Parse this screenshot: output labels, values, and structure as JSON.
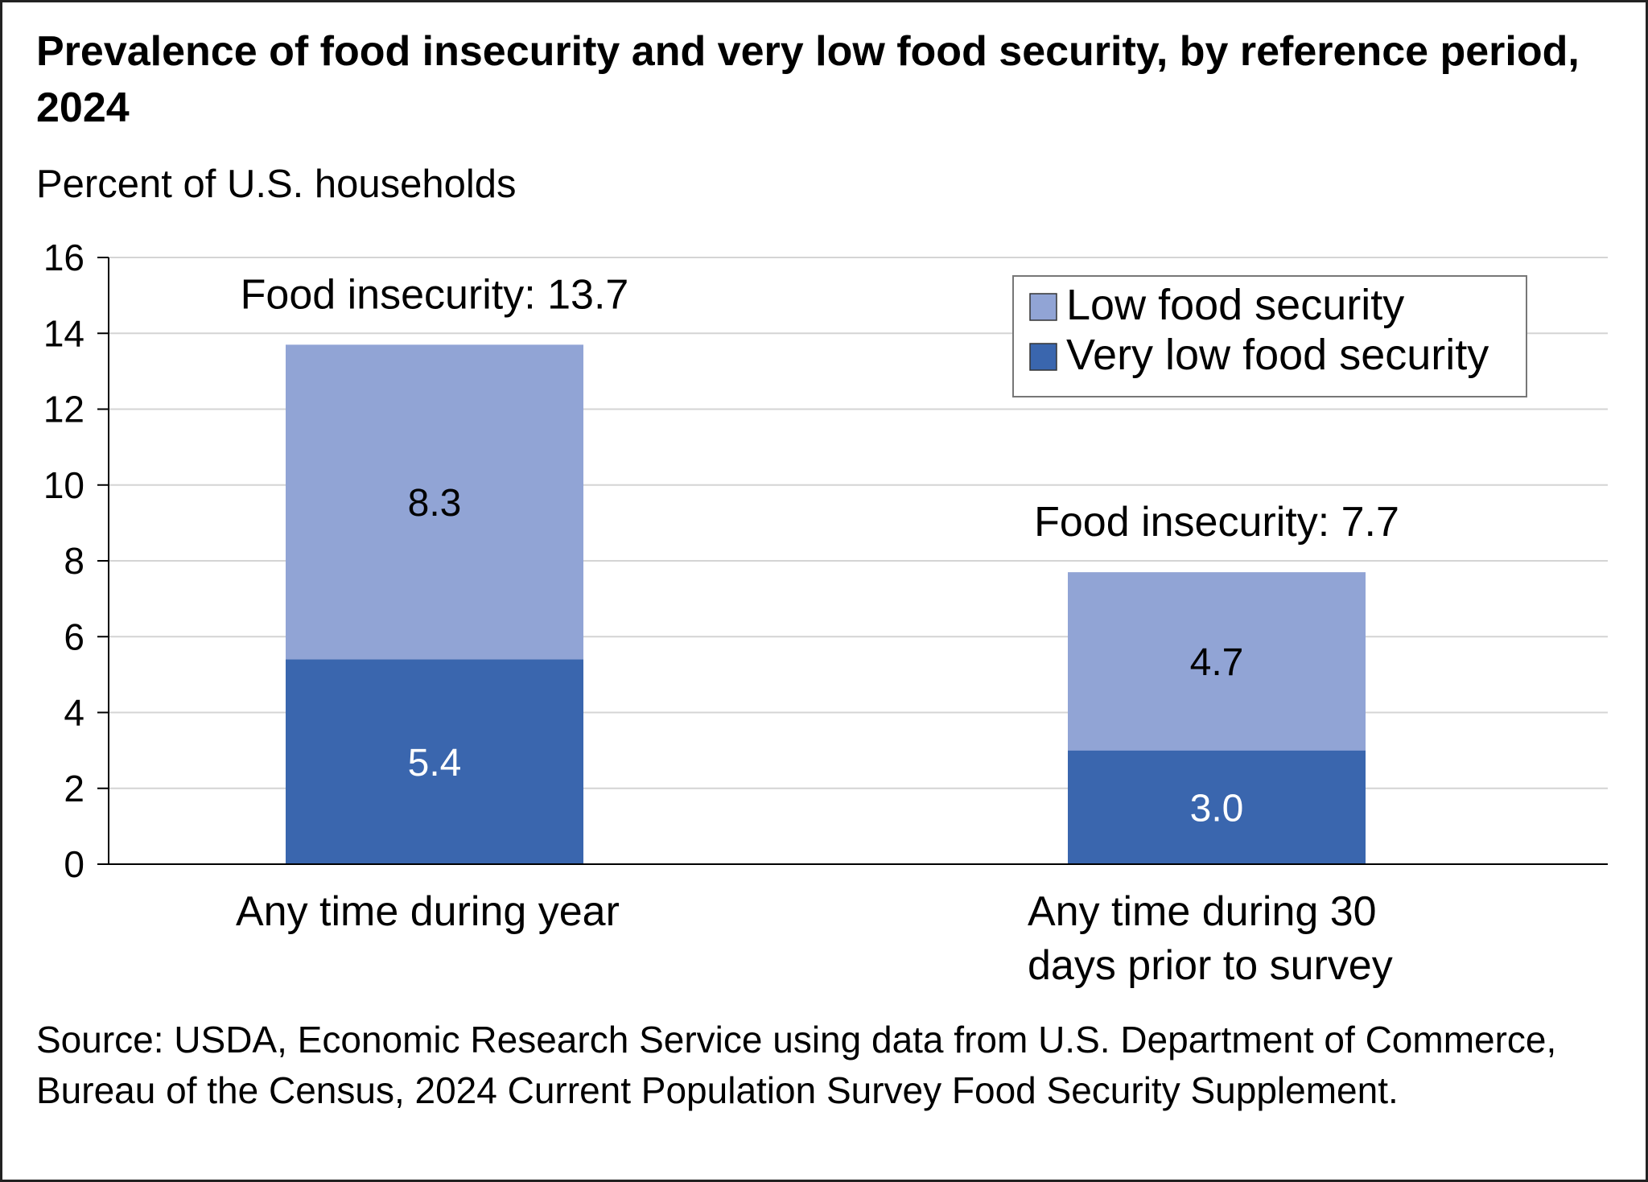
{
  "title": "Prevalence of food insecurity and very low food security, by reference period, 2024",
  "source": "Source: USDA, Economic Research Service using data from U.S. Department of Commerce, Bureau of the Census, 2024 Current Population Survey Food Security Supplement.",
  "chart_data": {
    "type": "bar",
    "stacked": true,
    "ylabel": "Percent of U.S. households",
    "ylim": [
      0,
      16
    ],
    "yticks": [
      0,
      2,
      4,
      6,
      8,
      10,
      12,
      14,
      16
    ],
    "grid": true,
    "legend_position": "top-right",
    "categories": [
      [
        "Any time during year"
      ],
      [
        "Any time during 30",
        "days prior to survey"
      ]
    ],
    "series": [
      {
        "name": "Very low food security",
        "values": [
          5.4,
          3.0
        ],
        "labels": [
          "5.4",
          "3.0"
        ],
        "color": "#3a66ae"
      },
      {
        "name": "Low food security",
        "values": [
          8.3,
          4.7
        ],
        "labels": [
          "8.3",
          "4.7"
        ],
        "color": "#91a4d5"
      }
    ],
    "totals": [
      "Food insecurity: 13.7",
      "Food insecurity: 7.7"
    ]
  }
}
